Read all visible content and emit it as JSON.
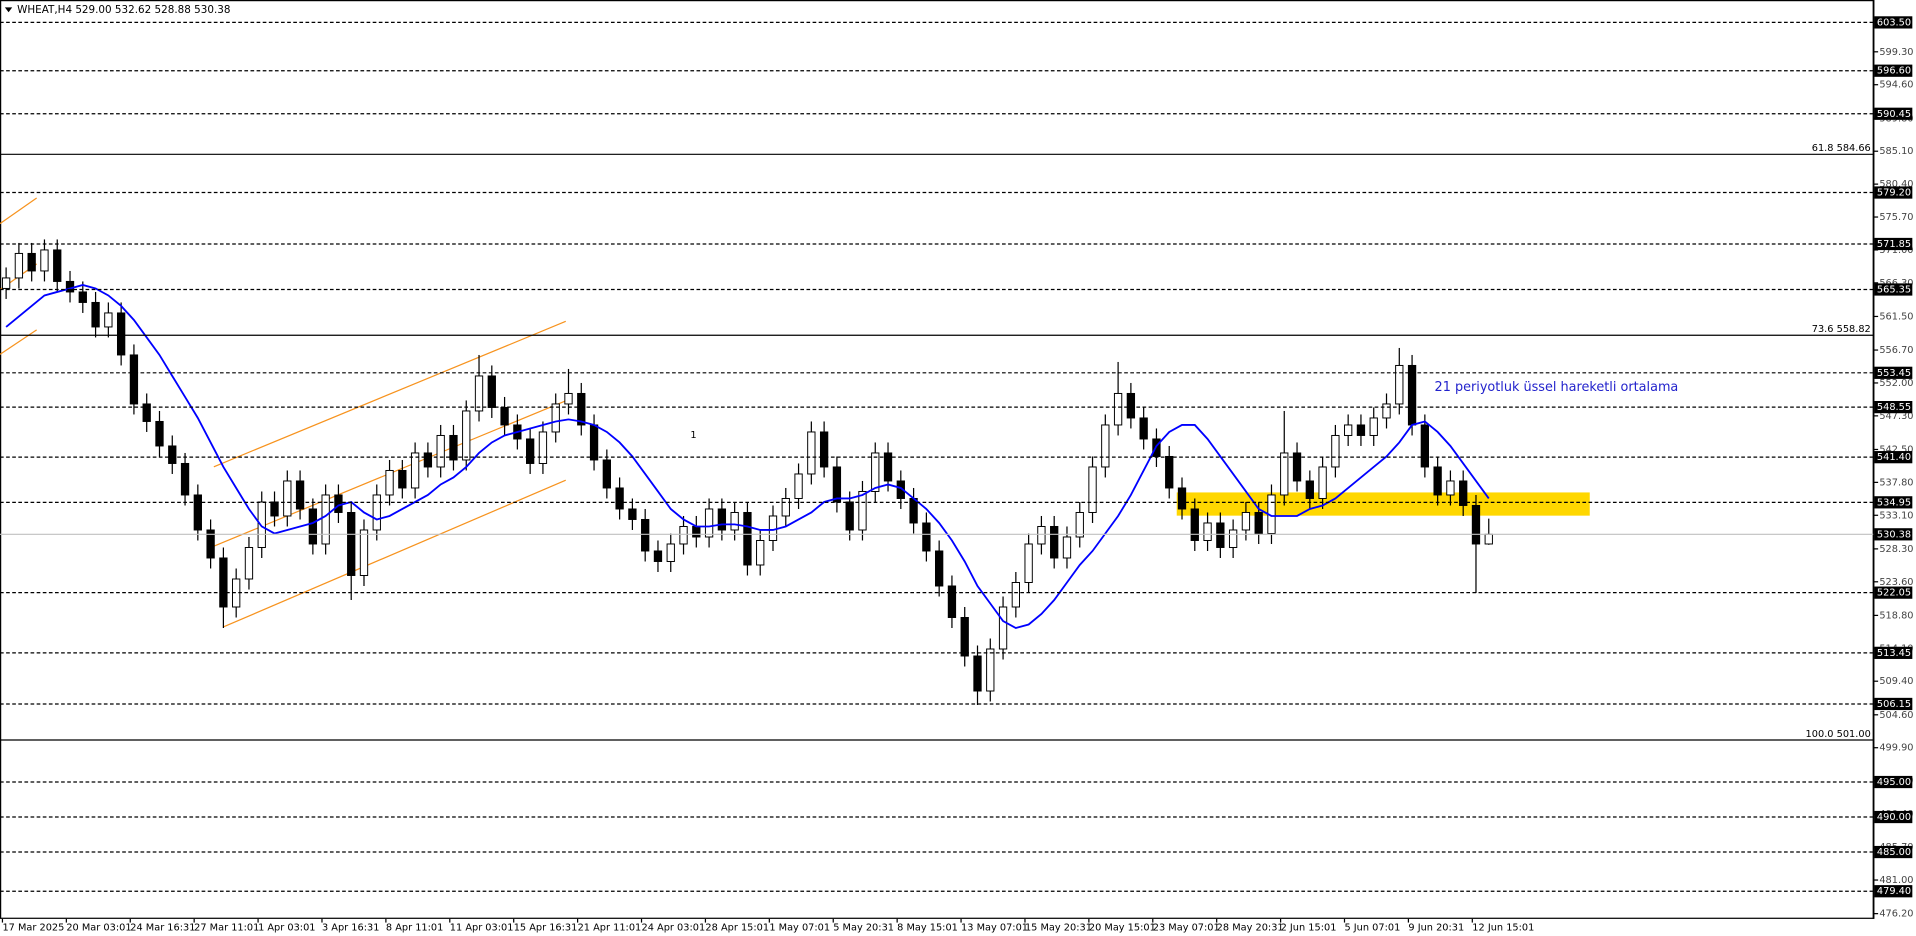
{
  "chart_data": {
    "type": "candlestick",
    "title": "WHEAT,H4  529.00 532.62 528.88 530.38",
    "categories": [
      "17 Mar 2025",
      null,
      null,
      null,
      null,
      "20 Mar 03:01",
      null,
      null,
      null,
      null,
      "24 Mar 16:31",
      null,
      null,
      null,
      null,
      "27 Mar 11:01",
      null,
      null,
      null,
      null,
      "1 Apr 03:01",
      null,
      null,
      null,
      null,
      "3 Apr 16:31",
      null,
      null,
      null,
      null,
      "8 Apr 11:01",
      null,
      null,
      null,
      null,
      "11 Apr 03:01",
      null,
      null,
      null,
      null,
      "15 Apr 16:31",
      null,
      null,
      null,
      null,
      "21 Apr 11:01",
      null,
      null,
      null,
      null,
      "24 Apr 03:01",
      null,
      null,
      null,
      null,
      "28 Apr 15:01",
      null,
      null,
      null,
      null,
      "1 May 07:01",
      null,
      null,
      null,
      null,
      "5 May 20:31",
      null,
      null,
      null,
      null,
      "8 May 15:01",
      null,
      null,
      null,
      null,
      "13 May 07:01",
      null,
      null,
      null,
      null,
      "15 May 20:31",
      null,
      null,
      null,
      null,
      "20 May 15:01",
      null,
      null,
      null,
      null,
      "23 May 07:01",
      null,
      null,
      null,
      null,
      "28 May 20:31",
      null,
      null,
      null,
      null,
      "2 Jun 15:01",
      null,
      null,
      null,
      null,
      "5 Jun 07:01",
      null,
      null,
      null,
      null,
      "9 Jun 20:31",
      null,
      null,
      null,
      null,
      "12 Jun 15:01",
      null
    ],
    "open": [
      565.5,
      567.0,
      570.5,
      568.0,
      571.0,
      566.5,
      565.0,
      563.5,
      560.0,
      562.0,
      556.0,
      549.0,
      546.5,
      543.0,
      540.5,
      536.0,
      531.0,
      527.0,
      520.0,
      524.0,
      528.5,
      535.0,
      533.0,
      538.0,
      534.0,
      529.0,
      536.0,
      533.5,
      524.5,
      531.0,
      536.0,
      539.5,
      537.0,
      542.0,
      540.0,
      544.5,
      541.0,
      548.0,
      553.0,
      548.5,
      546.0,
      544.0,
      540.5,
      545.0,
      549.0,
      550.5,
      546.0,
      541.0,
      537.0,
      534.0,
      532.5,
      528.0,
      526.5,
      529.0,
      531.5,
      530.0,
      534.0,
      531.0,
      533.5,
      526.0,
      529.5,
      533.0,
      535.5,
      539.0,
      545.0,
      540.0,
      535.0,
      531.0,
      536.5,
      542.0,
      538.0,
      535.5,
      532.0,
      528.0,
      523.0,
      518.5,
      513.0,
      508.0,
      514.0,
      520.0,
      523.5,
      529.0,
      531.5,
      527.0,
      530.0,
      533.5,
      540.0,
      546.0,
      550.5,
      547.0,
      544.0,
      541.5,
      537.0,
      534.0,
      529.5,
      532.0,
      528.5,
      531.0,
      533.5,
      530.5,
      536.0,
      542.0,
      538.0,
      535.5,
      540.0,
      544.5,
      546.0,
      544.5,
      547.0,
      549.0,
      554.5,
      546.0,
      540.0,
      536.0,
      538.0,
      534.5,
      529.0
    ],
    "high": [
      568.5,
      572.0,
      572.0,
      572.5,
      572.5,
      568.0,
      566.5,
      565.0,
      563.5,
      563.5,
      557.5,
      550.5,
      548.0,
      544.5,
      542.0,
      537.5,
      532.5,
      528.5,
      525.5,
      530.0,
      536.5,
      536.5,
      539.5,
      539.5,
      535.5,
      537.5,
      537.5,
      535.0,
      532.5,
      537.5,
      541.0,
      541.0,
      543.5,
      543.5,
      546.0,
      546.0,
      549.5,
      556.0,
      554.5,
      550.0,
      547.5,
      545.5,
      546.5,
      550.5,
      554.0,
      552.0,
      547.5,
      542.5,
      538.5,
      535.5,
      534.0,
      529.5,
      530.5,
      533.0,
      533.0,
      535.5,
      535.5,
      535.0,
      535.0,
      531.0,
      534.5,
      537.0,
      540.5,
      546.5,
      546.5,
      541.5,
      536.5,
      538.0,
      543.5,
      543.5,
      539.5,
      537.0,
      533.5,
      529.5,
      524.5,
      520.0,
      514.5,
      515.5,
      521.5,
      525.0,
      530.5,
      533.0,
      533.0,
      531.5,
      535.0,
      541.5,
      547.5,
      555.0,
      552.0,
      548.5,
      545.5,
      543.0,
      538.5,
      535.5,
      533.5,
      533.5,
      532.5,
      535.0,
      535.0,
      537.5,
      548.0,
      543.5,
      539.5,
      541.5,
      546.0,
      547.5,
      547.5,
      548.5,
      550.5,
      557.0,
      556.0,
      547.5,
      541.5,
      539.5,
      539.5,
      536.0,
      532.62
    ],
    "low": [
      564.0,
      565.5,
      566.5,
      566.5,
      565.0,
      563.5,
      562.0,
      558.5,
      558.5,
      554.5,
      547.5,
      545.0,
      541.5,
      539.0,
      534.5,
      529.5,
      525.5,
      517.0,
      518.5,
      522.5,
      527.0,
      531.5,
      531.5,
      532.5,
      527.5,
      527.5,
      532.0,
      521.0,
      523.0,
      529.5,
      534.5,
      535.5,
      535.5,
      538.5,
      538.5,
      539.5,
      539.5,
      546.5,
      547.0,
      544.5,
      542.5,
      539.0,
      539.0,
      543.5,
      547.5,
      544.5,
      539.5,
      535.5,
      532.5,
      531.0,
      526.5,
      525.0,
      525.0,
      527.5,
      528.5,
      528.5,
      529.5,
      529.5,
      524.5,
      524.5,
      528.0,
      531.5,
      534.0,
      537.5,
      538.5,
      533.5,
      529.5,
      529.5,
      535.0,
      536.5,
      534.0,
      530.5,
      526.5,
      521.5,
      517.0,
      511.5,
      506.0,
      506.5,
      512.5,
      518.5,
      522.0,
      527.5,
      525.5,
      525.5,
      528.5,
      532.0,
      538.5,
      544.5,
      545.5,
      542.5,
      540.0,
      535.5,
      532.5,
      528.0,
      528.0,
      527.0,
      527.0,
      529.5,
      529.0,
      529.0,
      534.5,
      536.5,
      534.0,
      534.0,
      538.5,
      543.0,
      543.0,
      543.0,
      545.5,
      547.5,
      544.5,
      538.5,
      534.5,
      534.5,
      533.0,
      522.0,
      528.88
    ],
    "close": [
      567.0,
      570.5,
      568.0,
      571.0,
      566.5,
      565.0,
      563.5,
      560.0,
      562.0,
      556.0,
      549.0,
      546.5,
      543.0,
      540.5,
      536.0,
      531.0,
      527.0,
      520.0,
      524.0,
      528.5,
      535.0,
      533.0,
      538.0,
      534.0,
      529.0,
      536.0,
      533.5,
      524.5,
      531.0,
      536.0,
      539.5,
      537.0,
      542.0,
      540.0,
      544.5,
      541.0,
      548.0,
      553.0,
      548.5,
      546.0,
      544.0,
      540.5,
      545.0,
      549.0,
      550.5,
      546.0,
      541.0,
      537.0,
      534.0,
      532.5,
      528.0,
      526.5,
      529.0,
      531.5,
      530.0,
      534.0,
      531.0,
      533.5,
      526.0,
      529.5,
      533.0,
      535.5,
      539.0,
      545.0,
      540.0,
      535.0,
      531.0,
      536.5,
      542.0,
      538.0,
      535.5,
      532.0,
      528.0,
      523.0,
      518.5,
      513.0,
      508.0,
      514.0,
      520.0,
      523.5,
      529.0,
      531.5,
      527.0,
      530.0,
      533.5,
      540.0,
      546.0,
      550.5,
      547.0,
      544.0,
      541.5,
      537.0,
      534.0,
      529.5,
      532.0,
      528.5,
      531.0,
      533.5,
      530.5,
      536.0,
      542.0,
      538.0,
      535.5,
      540.0,
      544.5,
      546.0,
      544.5,
      547.0,
      549.0,
      554.5,
      546.0,
      540.0,
      536.0,
      538.0,
      534.5,
      529.0,
      530.38
    ],
    "up_color": "#ffffff",
    "down_color": "#000000",
    "ema": {
      "color": "#0000ff",
      "values": [
        560.0,
        561.5,
        563.0,
        564.5,
        565.0,
        565.5,
        566.0,
        565.5,
        564.5,
        563.0,
        561.0,
        558.5,
        556.0,
        553.0,
        550.0,
        547.0,
        543.5,
        540.0,
        537.0,
        534.0,
        531.5,
        530.5,
        531.0,
        531.5,
        532.0,
        533.0,
        534.5,
        535.0,
        533.5,
        532.5,
        533.0,
        534.0,
        535.0,
        536.0,
        537.5,
        538.5,
        540.0,
        542.0,
        543.5,
        544.5,
        545.0,
        545.5,
        546.0,
        546.5,
        546.8,
        546.5,
        546.0,
        545.0,
        543.5,
        541.5,
        539.0,
        536.5,
        534.0,
        532.5,
        531.5,
        531.5,
        531.8,
        531.8,
        531.5,
        531.0,
        531.0,
        531.5,
        532.5,
        533.5,
        535.0,
        535.5,
        535.5,
        536.0,
        537.0,
        537.5,
        537.0,
        535.5,
        534.0,
        532.0,
        529.5,
        526.5,
        523.0,
        520.5,
        518.0,
        517.0,
        517.5,
        519.0,
        521.0,
        523.5,
        526.0,
        528.0,
        530.5,
        533.0,
        536.0,
        539.5,
        543.0,
        545.0,
        546.0,
        546.0,
        544.0,
        541.5,
        539.0,
        536.5,
        534.0,
        533.0,
        533.0,
        533.0,
        534.0,
        534.5,
        535.5,
        537.0,
        538.5,
        540.0,
        541.5,
        543.5,
        546.0,
        546.5,
        545.0,
        543.0,
        540.5,
        538.0,
        535.5
      ]
    },
    "ylim": [
      475.45,
      606.7
    ],
    "yticks": [
      {
        "value": 599.3,
        "label": "599.30"
      },
      {
        "value": 594.6,
        "label": "594.60"
      },
      {
        "value": 589.8,
        "label": "589.80"
      },
      {
        "value": 585.1,
        "label": "585.10"
      },
      {
        "value": 580.4,
        "label": "580.40"
      },
      {
        "value": 575.7,
        "label": "575.70"
      },
      {
        "value": 571.0,
        "label": "571.00"
      },
      {
        "value": 566.3,
        "label": "566.30"
      },
      {
        "value": 561.5,
        "label": "561.50"
      },
      {
        "value": 556.7,
        "label": "556.70"
      },
      {
        "value": 552.0,
        "label": "552.00"
      },
      {
        "value": 547.3,
        "label": "547.30"
      },
      {
        "value": 542.5,
        "label": "542.50"
      },
      {
        "value": 537.8,
        "label": "537.80"
      },
      {
        "value": 533.1,
        "label": "533.10"
      },
      {
        "value": 528.3,
        "label": "528.30"
      },
      {
        "value": 523.6,
        "label": "523.60"
      },
      {
        "value": 518.8,
        "label": "518.80"
      },
      {
        "value": 514.1,
        "label": "514.10"
      },
      {
        "value": 509.4,
        "label": "509.40"
      },
      {
        "value": 504.6,
        "label": "504.60"
      },
      {
        "value": 499.9,
        "label": "499.90"
      },
      {
        "value": 495.2,
        "label": "495.20"
      },
      {
        "value": 490.4,
        "label": "490.40"
      },
      {
        "value": 485.7,
        "label": "485.70"
      },
      {
        "value": 481.0,
        "label": "481.00"
      },
      {
        "value": 476.2,
        "label": "476.20"
      }
    ],
    "levels": [
      {
        "value": 603.5,
        "label": "603.50"
      },
      {
        "value": 596.6,
        "label": "596.60"
      },
      590.45,
      {
        "value": 579.2,
        "label": "579.20"
      },
      571.85,
      565.35,
      553.45,
      548.55,
      {
        "value": 541.4,
        "label": "541.40"
      },
      534.95,
      522.05,
      513.45,
      506.15,
      {
        "value": 495.0,
        "label": "495.00"
      },
      {
        "value": 490.0,
        "label": "490.00"
      },
      {
        "value": 485.0,
        "label": "485.00"
      },
      {
        "value": 479.4,
        "label": "479.40"
      }
    ],
    "fib_levels": [
      {
        "value": 584.66,
        "label": "61.8 584.66"
      },
      {
        "value": 558.82,
        "label": "73.6 558.82"
      },
      {
        "value": 501.0,
        "label": "100.0 501.00"
      }
    ],
    "last_price": 530.38,
    "annotations": [
      "21 periyotluk üssel hareketli ortalama",
      "1"
    ]
  }
}
